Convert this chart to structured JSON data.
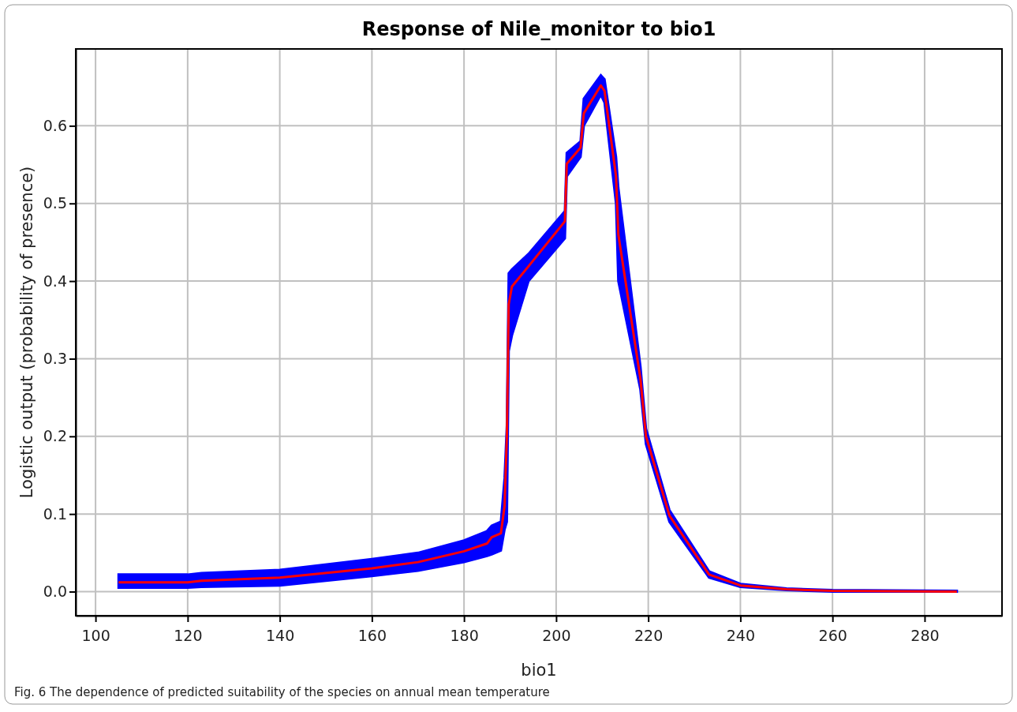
{
  "chart_data": {
    "type": "line",
    "title": "Response of Nile_monitor to bio1",
    "xlabel": "bio1",
    "ylabel": "Logistic output (probability of presence)",
    "annotations": [
      "Fig. 6 The dependence of predicted suitability of the species on annual mean temperature"
    ],
    "xlim": [
      95.7,
      296.8
    ],
    "ylim": [
      -0.031,
      0.699
    ],
    "xticks": [
      100,
      120,
      140,
      160,
      180,
      200,
      220,
      240,
      260,
      280
    ],
    "yticks": [
      {
        "value": 0,
        "label": "0.0"
      },
      {
        "value": 0.1,
        "label": "0.1"
      },
      {
        "value": 0.2,
        "label": "0.2"
      },
      {
        "value": 0.3,
        "label": "0.3"
      },
      {
        "value": 0.4,
        "label": "0.4"
      },
      {
        "value": 0.5,
        "label": "0.5"
      },
      {
        "value": 0.6,
        "label": "0.6"
      }
    ],
    "grid": true,
    "marker": "none",
    "line_style": "solid",
    "series": [
      {
        "color": "#ff0000",
        "x": [
          105,
          120,
          123,
          140,
          160,
          170,
          180,
          185,
          186,
          188,
          188.8,
          189.3,
          189.7,
          190.4,
          194,
          201.9,
          202.3,
          205.3,
          206,
          209.7,
          210.5,
          213,
          213.5,
          218.3,
          219.5,
          224.6,
          233.2,
          240,
          250,
          260,
          287
        ],
        "values": [
          0.012,
          0.012,
          0.014,
          0.018,
          0.03,
          0.038,
          0.052,
          0.062,
          0.07,
          0.075,
          0.11,
          0.2,
          0.37,
          0.393,
          0.419,
          0.477,
          0.551,
          0.572,
          0.616,
          0.652,
          0.645,
          0.535,
          0.46,
          0.274,
          0.2,
          0.098,
          0.022,
          0.008,
          0.003,
          0.001,
          0
        ],
        "lower": [
          0.005,
          0.005,
          0.006,
          0.008,
          0.02,
          0.027,
          0.038,
          0.046,
          0.048,
          0.053,
          0.08,
          0.09,
          0.31,
          0.33,
          0.4,
          0.455,
          0.535,
          0.56,
          0.6,
          0.64,
          0.63,
          0.5,
          0.4,
          0.26,
          0.19,
          0.09,
          0.018,
          0.006,
          0.002,
          0,
          0
        ],
        "upper": [
          0.022,
          0.022,
          0.024,
          0.028,
          0.042,
          0.05,
          0.066,
          0.078,
          0.085,
          0.09,
          0.146,
          0.214,
          0.41,
          0.415,
          0.435,
          0.49,
          0.565,
          0.58,
          0.635,
          0.665,
          0.66,
          0.56,
          0.52,
          0.29,
          0.21,
          0.105,
          0.026,
          0.01,
          0.004,
          0.002,
          0.001
        ]
      }
    ]
  }
}
